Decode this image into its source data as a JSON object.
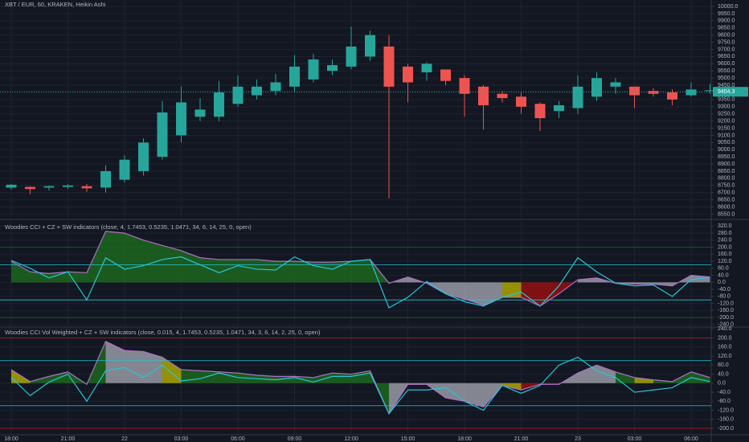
{
  "chart_data": [
    {
      "type": "candlestick",
      "title": "XBT / EUR, 60, KRAKEN, Heikin Ashi",
      "categories": [
        "18:00",
        null,
        null,
        "21:00",
        null,
        null,
        "22",
        null,
        null,
        "03:00",
        null,
        null,
        "06:00",
        null,
        null,
        "09:00",
        null,
        null,
        "12:00",
        null,
        null,
        "15:00",
        null,
        null,
        "18:00",
        null,
        null,
        "21:00",
        null,
        null,
        "23",
        null,
        null,
        "03:00",
        null,
        null,
        "06:00",
        null
      ],
      "open": [
        8735,
        8740,
        8735,
        8740,
        8745,
        8735,
        8790,
        8850,
        8950,
        9100,
        9230,
        9230,
        9320,
        9380,
        9410,
        9440,
        9490,
        9550,
        9580,
        9650,
        9720,
        9580,
        9540,
        9560,
        9500,
        9440,
        9390,
        9370,
        9320,
        9270,
        9290,
        9370,
        9440,
        9440,
        9410,
        9400,
        9380,
        9410
      ],
      "high": [
        8760,
        8745,
        8750,
        8760,
        8760,
        8890,
        8960,
        9080,
        9340,
        9440,
        9360,
        9480,
        9520,
        9490,
        9530,
        9660,
        9670,
        9630,
        9860,
        9830,
        9800,
        9600,
        9610,
        9560,
        9520,
        9450,
        9410,
        9400,
        9330,
        9340,
        9520,
        9540,
        9500,
        9440,
        9430,
        9420,
        9470,
        9460
      ],
      "low": [
        8720,
        8690,
        8715,
        8725,
        8705,
        8700,
        8770,
        8820,
        8930,
        9050,
        9200,
        9200,
        9300,
        9350,
        9380,
        9400,
        9470,
        9520,
        9560,
        9620,
        8660,
        9330,
        9480,
        9450,
        9230,
        9140,
        9330,
        9250,
        9130,
        9220,
        9250,
        9340,
        9390,
        9290,
        9370,
        9310,
        9370,
        9390
      ],
      "close": [
        8755,
        8725,
        8745,
        8750,
        8730,
        8850,
        8930,
        9050,
        9260,
        9330,
        9280,
        9400,
        9440,
        9440,
        9470,
        9580,
        9630,
        9590,
        9720,
        9800,
        9440,
        9470,
        9600,
        9480,
        9390,
        9310,
        9360,
        9300,
        9220,
        9310,
        9440,
        9500,
        9470,
        9380,
        9390,
        9350,
        9420,
        9415
      ],
      "up_color": "#26a69a",
      "down_color": "#ef5350",
      "last_price": 9404.3,
      "ylim": [
        8530,
        10045
      ],
      "yticks": [
        {
          "value": 10000,
          "label": "10000.0"
        },
        {
          "value": 9950,
          "label": "9950.0"
        },
        {
          "value": 9900,
          "label": "9900.0"
        },
        {
          "value": 9850,
          "label": "9850.0"
        },
        {
          "value": 9800,
          "label": "9800.0"
        },
        {
          "value": 9750,
          "label": "9750.0"
        },
        {
          "value": 9700,
          "label": "9700.0"
        },
        {
          "value": 9650,
          "label": "9650.0"
        },
        {
          "value": 9600,
          "label": "9600.0"
        },
        {
          "value": 9550,
          "label": "9550.0"
        },
        {
          "value": 9500,
          "label": "9500.0"
        },
        {
          "value": 9450,
          "label": "9450.0"
        },
        {
          "value": 9400,
          "label": "9400.0"
        },
        {
          "value": 9350,
          "label": "9350.0"
        },
        {
          "value": 9300,
          "label": "9300.0"
        },
        {
          "value": 9250,
          "label": "9250.0"
        },
        {
          "value": 9200,
          "label": "9200.0"
        },
        {
          "value": 9150,
          "label": "9150.0"
        },
        {
          "value": 9100,
          "label": "9100.0"
        },
        {
          "value": 9050,
          "label": "9050.0"
        },
        {
          "value": 9000,
          "label": "9000.0"
        },
        {
          "value": 8950,
          "label": "8950.0"
        },
        {
          "value": 8900,
          "label": "8900.0"
        },
        {
          "value": 8850,
          "label": "8850.0"
        },
        {
          "value": 8800,
          "label": "8800.0"
        },
        {
          "value": 8750,
          "label": "8750.0"
        },
        {
          "value": 8700,
          "label": "8700.0"
        },
        {
          "value": 8650,
          "label": "8650.0"
        },
        {
          "value": 8600,
          "label": "8600.0"
        },
        {
          "value": 8550,
          "label": "8550.0"
        }
      ],
      "grid": true
    },
    {
      "type": "line",
      "title": "Woodies CCI + CZ + SW indicators (close, 4, 1.7453, 0.5235, 1.0471, 34, 6, 14, 25, 0, open)",
      "series": [
        {
          "color": "#b070c8",
          "values": [
            120,
            60,
            50,
            60,
            55,
            290,
            280,
            240,
            210,
            180,
            140,
            130,
            130,
            130,
            120,
            120,
            115,
            115,
            120,
            130,
            -5,
            30,
            -5,
            -65,
            -95,
            -130,
            -85,
            -85,
            -135,
            -65,
            15,
            25,
            -5,
            -10,
            -10,
            -20,
            40,
            30
          ]
        },
        {
          "color": "#26c6da",
          "values": [
            125,
            80,
            25,
            60,
            -100,
            140,
            75,
            95,
            130,
            145,
            100,
            55,
            95,
            75,
            70,
            145,
            95,
            75,
            120,
            130,
            -145,
            -85,
            5,
            -65,
            -110,
            -135,
            -85,
            -55,
            -135,
            -20,
            140,
            60,
            -5,
            -20,
            -15,
            -80,
            15,
            30
          ]
        }
      ],
      "fill_colors": [
        "#1e6b1e",
        "#1e6b1e",
        "#1e6b1e",
        "#1e6b1e",
        "#1e6b1e",
        "#1e6b1e",
        "#1e6b1e",
        "#1e6b1e",
        "#1e6b1e",
        "#1e6b1e",
        "#1e6b1e",
        "#1e6b1e",
        "#1e6b1e",
        "#1e6b1e",
        "#1e6b1e",
        "#1e6b1e",
        "#1e6b1e",
        "#1e6b1e",
        "#1e6b1e",
        "#1e6b1e",
        "#a0a3ad",
        "#a0a3ad",
        "#a0a3ad",
        "#a0a3ad",
        "#a0a3ad",
        "#a0a3ad",
        "#b5b000",
        "#9b1010",
        "#9b1010",
        "#9b1010",
        "#a0a3ad",
        "#a0a3ad",
        "#a0a3ad",
        "#a0a3ad",
        "#a0a3ad",
        "#a0a3ad",
        "#a0a3ad",
        "#a0a3ad"
      ],
      "hlines": [
        {
          "value": 200,
          "color": "#1b5e20"
        },
        {
          "value": 100,
          "color": "#26c6da"
        },
        {
          "value": -100,
          "color": "#26c6da"
        },
        {
          "value": -200,
          "color": "#1b5e20"
        }
      ],
      "ylim": [
        -250,
        340
      ],
      "yticks": [
        {
          "value": 320,
          "label": "320.0"
        },
        {
          "value": 280,
          "label": "280.0"
        },
        {
          "value": 240,
          "label": "240.0"
        },
        {
          "value": 200,
          "label": "200.0"
        },
        {
          "value": 160,
          "label": "160.0"
        },
        {
          "value": 120,
          "label": "120.0"
        },
        {
          "value": 80,
          "label": "80.0"
        },
        {
          "value": 40,
          "label": "40.0"
        },
        {
          "value": 0,
          "label": "0.0"
        },
        {
          "value": -40,
          "label": "-40.0"
        },
        {
          "value": -80,
          "label": "-80.0"
        },
        {
          "value": -120,
          "label": "-120.0"
        },
        {
          "value": -160,
          "label": "-160.0"
        },
        {
          "value": -200,
          "label": "-200.0"
        },
        {
          "value": -240,
          "label": "-240.0"
        }
      ],
      "grid": true
    },
    {
      "type": "line",
      "title": "Woodies CCI Vol Weighted + CZ + SW indicators (close, 0.015, 4, 1.7453, 0.5235, 1.0471, 34, 3, 6, 14, 2, 25, 0, open)",
      "series": [
        {
          "color": "#b070c8",
          "values": [
            60,
            7,
            30,
            50,
            -5,
            185,
            145,
            140,
            115,
            60,
            55,
            50,
            45,
            35,
            30,
            30,
            25,
            45,
            40,
            55,
            -135,
            -5,
            -5,
            -65,
            -80,
            -105,
            -10,
            -30,
            -5,
            -5,
            45,
            80,
            50,
            25,
            15,
            7,
            50,
            25
          ]
        },
        {
          "color": "#26c6da",
          "values": [
            25,
            -55,
            5,
            40,
            -80,
            55,
            70,
            25,
            80,
            10,
            20,
            45,
            25,
            20,
            15,
            25,
            5,
            30,
            30,
            45,
            -135,
            -30,
            -30,
            -20,
            -80,
            -120,
            -10,
            -45,
            -10,
            80,
            115,
            55,
            25,
            -40,
            -30,
            -20,
            25,
            7
          ]
        }
      ],
      "fill_colors": [
        "#b5b000",
        "#1e6b1e",
        "#1e6b1e",
        "#1e6b1e",
        "#1e6b1e",
        "#a0a3ad",
        "#a0a3ad",
        "#a0a3ad",
        "#b5b000",
        "#1e6b1e",
        "#1e6b1e",
        "#1e6b1e",
        "#1e6b1e",
        "#1e6b1e",
        "#1e6b1e",
        "#1e6b1e",
        "#1e6b1e",
        "#1e6b1e",
        "#1e6b1e",
        "#1e6b1e",
        "#a0a3ad",
        "#a0a3ad",
        "#a0a3ad",
        "#a0a3ad",
        "#a0a3ad",
        "#a0a3ad",
        "#b5b000",
        "#9b1010",
        "#9b1010",
        "#a0a3ad",
        "#a0a3ad",
        "#a0a3ad",
        "#1e6b1e",
        "#b5b000",
        "#1e6b1e",
        "#1e6b1e",
        "#1e6b1e",
        "#1e6b1e"
      ],
      "hlines": [
        {
          "value": 200,
          "color": "#b71c1c"
        },
        {
          "value": 100,
          "color": "#26c6da"
        },
        {
          "value": -100,
          "color": "#26c6da"
        },
        {
          "value": -200,
          "color": "#b71c1c"
        }
      ],
      "ylim": [
        -225,
        245
      ],
      "yticks": [
        {
          "value": 240,
          "label": "240.0"
        },
        {
          "value": 200,
          "label": "200.0"
        },
        {
          "value": 160,
          "label": "160.0"
        },
        {
          "value": 120,
          "label": "120.0"
        },
        {
          "value": 80,
          "label": "80.0"
        },
        {
          "value": 40,
          "label": "40.0"
        },
        {
          "value": 0,
          "label": "0.0"
        },
        {
          "value": -40,
          "label": "-40.0"
        },
        {
          "value": -80,
          "label": "-80.0"
        },
        {
          "value": -120,
          "label": "-120.0"
        },
        {
          "value": -160,
          "label": "-160.0"
        },
        {
          "value": -200,
          "label": "-200.0"
        }
      ],
      "grid": true
    }
  ]
}
